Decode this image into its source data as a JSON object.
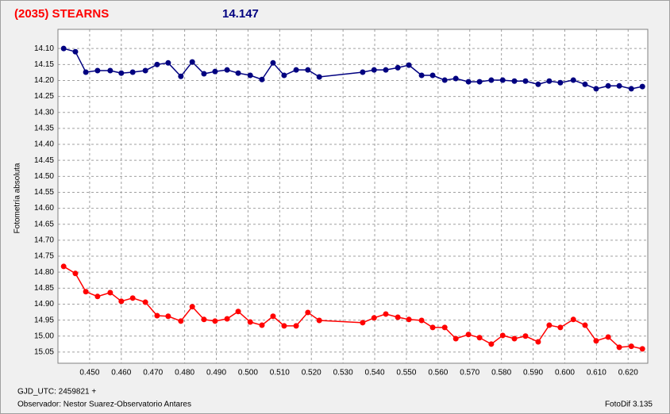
{
  "chart_data": {
    "type": "line",
    "title": "(2035) STEARNS",
    "subtitle": "14.147",
    "y_label": "Fotometría absoluta",
    "x_label": "GJD_UTC: 2459821 +",
    "observer": "Observador: Nestor Suarez-Observatorio Antares",
    "software": "FotoDif 3.135",
    "x": [
      0.4418,
      0.4455,
      0.4488,
      0.4525,
      0.4565,
      0.46,
      0.4636,
      0.4676,
      0.4713,
      0.4748,
      0.4788,
      0.4824,
      0.4861,
      0.4896,
      0.4934,
      0.4969,
      0.5007,
      0.5044,
      0.5079,
      0.5114,
      0.5152,
      0.5189,
      0.5225,
      0.5362,
      0.5398,
      0.5435,
      0.5473,
      0.5508,
      0.5548,
      0.5583,
      0.5621,
      0.5656,
      0.5696,
      0.5731,
      0.5768,
      0.5804,
      0.5841,
      0.5876,
      0.5916,
      0.5951,
      0.5986,
      0.6027,
      0.6064,
      0.6099,
      0.6137,
      0.6172,
      0.621,
      0.6245
    ],
    "series": [
      {
        "color": "#000080",
        "values": [
          14.1,
          14.11,
          14.174,
          14.169,
          14.169,
          14.177,
          14.174,
          14.169,
          14.15,
          14.145,
          14.187,
          14.142,
          14.179,
          14.172,
          14.167,
          14.177,
          14.184,
          14.197,
          14.145,
          14.184,
          14.167,
          14.167,
          14.189,
          14.174,
          14.167,
          14.167,
          14.16,
          14.152,
          14.184,
          14.184,
          14.199,
          14.194,
          14.204,
          14.204,
          14.199,
          14.199,
          14.202,
          14.202,
          14.212,
          14.202,
          14.207,
          14.199,
          14.212,
          14.226,
          14.217,
          14.217,
          14.226,
          14.219
        ]
      },
      {
        "color": "#ff0000",
        "values": [
          14.782,
          14.804,
          14.861,
          14.876,
          14.864,
          14.891,
          14.881,
          14.894,
          14.936,
          14.938,
          14.953,
          14.908,
          14.948,
          14.953,
          14.946,
          14.923,
          14.956,
          14.966,
          14.938,
          14.968,
          14.968,
          14.926,
          14.951,
          14.958,
          14.943,
          14.931,
          14.941,
          14.948,
          14.951,
          14.973,
          14.973,
          15.008,
          14.995,
          15.005,
          15.025,
          14.998,
          15.008,
          15.0,
          15.018,
          14.966,
          14.973,
          14.948,
          14.966,
          15.015,
          15.003,
          15.035,
          15.032,
          15.04
        ]
      }
    ],
    "xlim": [
      0.44,
      0.6262
    ],
    "ylim": [
      15.085,
      14.04
    ],
    "xticks": [
      {
        "value": 0.45,
        "label": "0.450"
      },
      {
        "value": 0.46,
        "label": "0.460"
      },
      {
        "value": 0.47,
        "label": "0.470"
      },
      {
        "value": 0.48,
        "label": "0.480"
      },
      {
        "value": 0.49,
        "label": "0.490"
      },
      {
        "value": 0.5,
        "label": "0.500"
      },
      {
        "value": 0.51,
        "label": "0.510"
      },
      {
        "value": 0.52,
        "label": "0.520"
      },
      {
        "value": 0.53,
        "label": "0.530"
      },
      {
        "value": 0.54,
        "label": "0.540"
      },
      {
        "value": 0.55,
        "label": "0.550"
      },
      {
        "value": 0.56,
        "label": "0.560"
      },
      {
        "value": 0.57,
        "label": "0.570"
      },
      {
        "value": 0.58,
        "label": "0.580"
      },
      {
        "value": 0.59,
        "label": "0.590"
      },
      {
        "value": 0.6,
        "label": "0.600"
      },
      {
        "value": 0.61,
        "label": "0.610"
      },
      {
        "value": 0.62,
        "label": "0.620"
      }
    ],
    "yticks": [
      {
        "value": 14.1,
        "label": "14.10"
      },
      {
        "value": 14.15,
        "label": "14.15"
      },
      {
        "value": 14.2,
        "label": "14.20"
      },
      {
        "value": 14.25,
        "label": "14.25"
      },
      {
        "value": 14.3,
        "label": "14.30"
      },
      {
        "value": 14.35,
        "label": "14.35"
      },
      {
        "value": 14.4,
        "label": "14.40"
      },
      {
        "value": 14.45,
        "label": "14.45"
      },
      {
        "value": 14.5,
        "label": "14.50"
      },
      {
        "value": 14.55,
        "label": "14.55"
      },
      {
        "value": 14.6,
        "label": "14.60"
      },
      {
        "value": 14.65,
        "label": "14.65"
      },
      {
        "value": 14.7,
        "label": "14.70"
      },
      {
        "value": 14.75,
        "label": "14.75"
      },
      {
        "value": 14.8,
        "label": "14.80"
      },
      {
        "value": 14.85,
        "label": "14.85"
      },
      {
        "value": 14.9,
        "label": "14.90"
      },
      {
        "value": 14.95,
        "label": "14.95"
      },
      {
        "value": 15.0,
        "label": "15.00"
      },
      {
        "value": 15.05,
        "label": "15.05"
      }
    ],
    "grid": true
  }
}
